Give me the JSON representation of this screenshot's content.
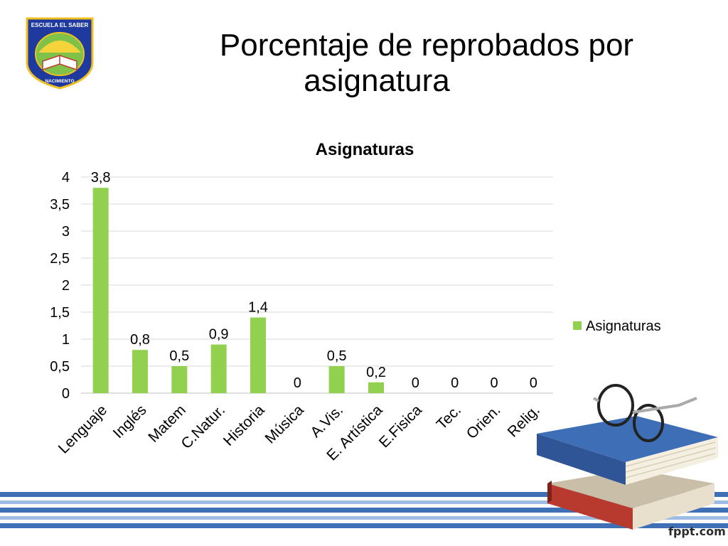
{
  "slide": {
    "title_line1": "Porcentaje  de reprobados por",
    "title_line2": "asignatura",
    "watermark": "fppt.com"
  },
  "logo": {
    "top_text": "ESCUELA EL SABER",
    "bottom_text": "NACIMIENTO"
  },
  "colors": {
    "bar": "#92d050",
    "gridline": "#d9d9d9",
    "stripe_dark": "#3f6fb5",
    "stripe_light": "#9dbbe3"
  },
  "chart_data": {
    "type": "bar",
    "title": "Asignaturas",
    "categories": [
      "Lenguaje",
      "Inglés",
      "Matem",
      "C.Natur.",
      "Historia",
      "Música",
      "A.Vis.",
      "E. Artística",
      "E.Fisica",
      "Tec.",
      "Orien.",
      "Relig."
    ],
    "series": [
      {
        "name": "Asignaturas",
        "values": [
          3.8,
          0.8,
          0.5,
          0.9,
          1.4,
          0,
          0.5,
          0.2,
          0,
          0,
          0,
          0
        ]
      }
    ],
    "data_labels": [
      "3,8",
      "0,8",
      "0,5",
      "0,9",
      "1,4",
      "0",
      "0,5",
      "0,2",
      "0",
      "0",
      "0",
      "0"
    ],
    "ylim": [
      0,
      4
    ],
    "yticks": [
      "0",
      "0,5",
      "1",
      "1,5",
      "2",
      "2,5",
      "3",
      "3,5",
      "4"
    ],
    "grid": true,
    "legend_position": "right"
  }
}
